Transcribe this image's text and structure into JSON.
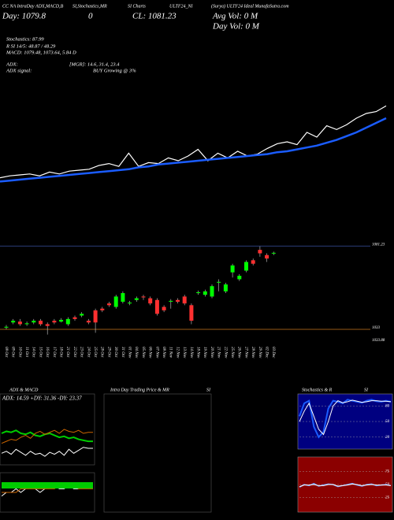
{
  "header": {
    "line1": [
      "CC NA IntraDay ADX,MACD,B",
      "SI,Stochastics,MR",
      "SI Charts",
      "ULTF24_NI",
      "(Surya) ULTF24 Ideal MunafaSutra.com"
    ],
    "day": "Day: 1079.8",
    "zero": "0",
    "close": "CL: 1081.23",
    "avg_vol": "Avg Vol: 0  M",
    "day_vol": "Day Vol: 0  M",
    "stochastics": "Stochastics: 87.99",
    "rsi": "R SI 14/5: 48.87 / 48.29",
    "macd": "MACD: 1079.48, 1073.64, 5.84  D",
    "adx_label": "ADX:",
    "adx_values": "[MGR]: 14.6, 31.4, 23.4",
    "adx_signal_label": "ADX  signal:",
    "adx_signal": "BUY Growing @ 3%"
  },
  "chart_data": [
    {
      "type": "line",
      "ylim": [
        0,
        100
      ],
      "series": [
        {
          "name": "price",
          "color": "#ffffff",
          "values": [
            12,
            14,
            15,
            16,
            14,
            18,
            16,
            19,
            20,
            21,
            25,
            27,
            24,
            38,
            24,
            28,
            27,
            33,
            30,
            35,
            42,
            30,
            38,
            33,
            40,
            35,
            37,
            43,
            48,
            50,
            47,
            60,
            55,
            67,
            63,
            68,
            75,
            80,
            82,
            88
          ]
        },
        {
          "name": "average",
          "color": "#1a5cff",
          "values": [
            8,
            9,
            10,
            11,
            12,
            13,
            14,
            15,
            16,
            17,
            18,
            19,
            20,
            21,
            23,
            24,
            26,
            27,
            28,
            29,
            30,
            31,
            32,
            33,
            34,
            35,
            36,
            37,
            39,
            40,
            42,
            44,
            46,
            49,
            52,
            56,
            60,
            65,
            70,
            75
          ]
        }
      ]
    },
    {
      "type": "candlestick",
      "ylim": [
        1028,
        1085
      ],
      "levels": [
        1081.23,
        1033
      ],
      "extra_label": "1033.88",
      "categories": [
        "08 Oct",
        "09 Oct",
        "10 Oct",
        "11 Oct",
        "14 Oct",
        "15 Oct",
        "16 Oct",
        "17 Oct",
        "18 Oct",
        "21 Oct",
        "22 Oct",
        "23 Oct",
        "24 Oct",
        "25 Oct",
        "28 Oct",
        "29 Oct",
        "30 Oct",
        "31 Oct",
        "01 Nov",
        "04 Nov",
        "05 Nov",
        "06 Nov",
        "07 Nov",
        "08 Nov",
        "11 Nov",
        "12 Nov",
        "13 Nov",
        "14 Nov",
        "18 Nov",
        "19 Nov",
        "20 Nov",
        "21 Nov",
        "22 Nov",
        "25 Nov",
        "26 Nov",
        "27 Nov",
        "28 Nov",
        "29 Nov",
        "02 Dec",
        "03 Dec"
      ],
      "open": [
        1034,
        1037,
        1037.5,
        1036,
        1037,
        1038,
        1036,
        1038,
        1037.5,
        1036,
        1040,
        1041,
        1038,
        1044,
        1045,
        1048,
        1046,
        1049,
        1048,
        1050,
        1052,
        1051,
        1050,
        1046,
        1049,
        1050,
        1052,
        1047,
        1054,
        1053,
        1052,
        1060,
        1055,
        1066,
        1062,
        1067,
        1073,
        1079,
        1076,
        1077
      ],
      "close": [
        1034.5,
        1038,
        1036,
        1036.5,
        1038,
        1036,
        1035,
        1037,
        1038.5,
        1039,
        1039,
        1042,
        1037,
        1037,
        1044,
        1047,
        1052,
        1054,
        1048.5,
        1051,
        1051.5,
        1048,
        1042,
        1044,
        1049.5,
        1049,
        1048,
        1038,
        1054.5,
        1055,
        1058,
        1060.5,
        1059,
        1070,
        1064,
        1072,
        1071,
        1077,
        1074,
        1077.3
      ],
      "high": [
        1035.5,
        1039,
        1039,
        1037.5,
        1039,
        1039,
        1037,
        1039,
        1039.5,
        1040,
        1041,
        1043,
        1039,
        1045,
        1046,
        1049,
        1053,
        1055,
        1049.5,
        1052,
        1053,
        1052,
        1051,
        1047,
        1050.5,
        1051,
        1053,
        1048,
        1055.5,
        1056,
        1059,
        1062,
        1060,
        1071,
        1065,
        1073,
        1074,
        1081,
        1077,
        1078
      ],
      "low": [
        1033,
        1036,
        1035,
        1035,
        1036,
        1035,
        1030,
        1036,
        1037,
        1035,
        1038,
        1040,
        1036,
        1031,
        1043,
        1046,
        1045,
        1048,
        1047,
        1049,
        1050,
        1047,
        1041,
        1043,
        1045,
        1048,
        1047,
        1036,
        1053,
        1052,
        1051,
        1055,
        1054,
        1063,
        1061,
        1066,
        1070,
        1075,
        1072,
        1076
      ]
    },
    {
      "type": "line",
      "title": "ADX  & MACD",
      "subtitle": "ADX: 14.59  +DY: 31.36  -DY: 23.37",
      "ylim": [
        0,
        60
      ],
      "series": [
        {
          "name": "adx",
          "color": "#00cc00",
          "values": [
            30,
            32,
            31,
            33,
            30,
            29,
            31,
            28,
            27,
            29,
            30,
            28,
            26,
            27,
            25,
            26,
            24,
            23,
            22,
            22
          ]
        },
        {
          "name": "+di",
          "color": "#cc6600",
          "values": [
            20,
            22,
            24,
            23,
            26,
            28,
            25,
            30,
            32,
            29,
            31,
            33,
            30,
            34,
            32,
            31,
            33,
            30,
            31,
            31
          ]
        },
        {
          "name": "-di",
          "color": "#ffffff",
          "values": [
            10,
            12,
            9,
            14,
            11,
            8,
            12,
            9,
            10,
            7,
            11,
            9,
            12,
            8,
            14,
            10,
            13,
            16,
            15,
            15
          ]
        }
      ]
    },
    {
      "type": "line",
      "ylim": [
        0,
        10
      ],
      "series": [
        {
          "name": "macd",
          "color": "#ffffff",
          "values": [
            4,
            5,
            5,
            6,
            5,
            6,
            7,
            6,
            5,
            6,
            7,
            7,
            6,
            6,
            7,
            6,
            6,
            7,
            7,
            7
          ]
        },
        {
          "name": "signal",
          "color": "#cc6600",
          "values": [
            5,
            5,
            5,
            5,
            6,
            6,
            6,
            6,
            6,
            6,
            6,
            6,
            7,
            7,
            7,
            7,
            6,
            6,
            6,
            6
          ]
        }
      ]
    },
    {
      "type": "line",
      "title": "Intra Day Trading Price  & MR",
      "title2": "SI",
      "series": []
    },
    {
      "type": "line",
      "title": "Stochastics & R",
      "title2": "SI",
      "ylim": [
        0,
        100
      ],
      "yticks": [
        80,
        50,
        20
      ],
      "series": [
        {
          "name": "k",
          "color": "#1a5cff",
          "values": [
            60,
            85,
            90,
            40,
            20,
            30,
            75,
            90,
            88,
            85,
            92,
            90,
            88,
            86,
            90,
            92,
            89,
            88,
            90,
            88
          ]
        },
        {
          "name": "d",
          "color": "#ffffff",
          "values": [
            50,
            70,
            85,
            60,
            35,
            25,
            50,
            80,
            90,
            86,
            88,
            91,
            89,
            87,
            88,
            90,
            90,
            89,
            89,
            88
          ]
        }
      ]
    },
    {
      "type": "line",
      "ylim": [
        0,
        100
      ],
      "yticks": [
        75,
        50,
        25
      ],
      "series": [
        {
          "name": "rsi",
          "color": "#6699ff",
          "values": [
            45,
            50,
            48,
            52,
            47,
            49,
            51,
            50,
            46,
            48,
            50,
            52,
            49,
            47,
            50,
            51,
            48,
            49,
            50,
            48
          ]
        },
        {
          "name": "rsi2",
          "color": "#ffffff",
          "values": [
            46,
            49,
            49,
            50,
            48,
            48,
            50,
            50,
            47,
            48,
            49,
            51,
            50,
            48,
            49,
            50,
            49,
            49,
            49,
            48
          ]
        }
      ]
    }
  ]
}
